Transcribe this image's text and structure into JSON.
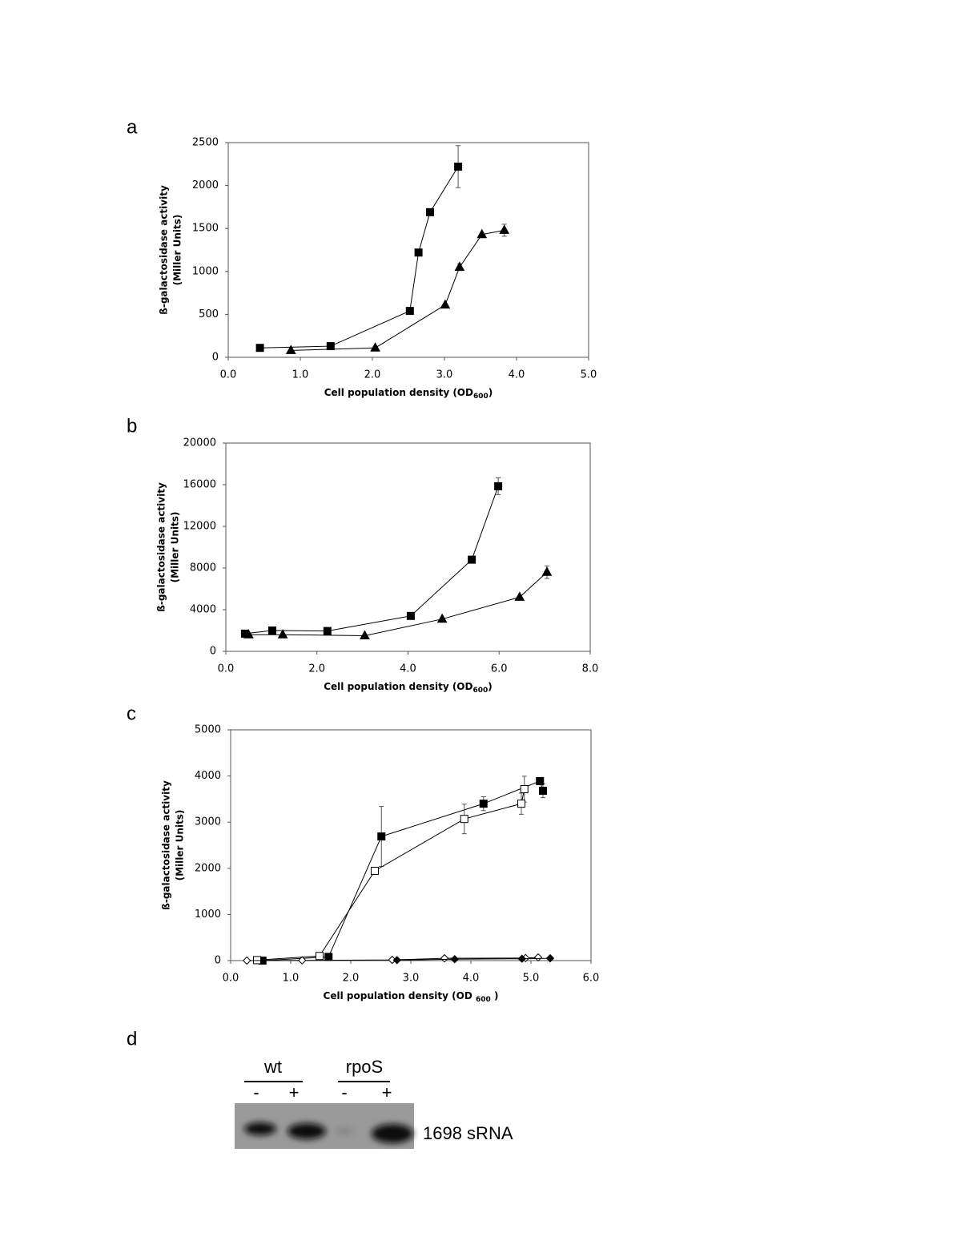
{
  "chart_data": [
    {
      "type": "line",
      "panel": "a",
      "ylabel": [
        "ß-galactosidase activity",
        "(Miller Units)"
      ],
      "xlabel": "Cell population density (OD",
      "xlabel_sub": "600",
      "xlabel_end": ")",
      "xlim": [
        0,
        5
      ],
      "ylim": [
        0,
        2500
      ],
      "xticks": [
        {
          "value": 0,
          "label": "0.0"
        },
        {
          "value": 1,
          "label": "1.0"
        },
        {
          "value": 2,
          "label": "2.0"
        },
        {
          "value": 3,
          "label": "3.0"
        },
        {
          "value": 4,
          "label": "4.0"
        },
        {
          "value": 5,
          "label": "5.0"
        }
      ],
      "yticks": [
        0,
        500,
        1000,
        1500,
        2000,
        2500
      ],
      "series": [
        {
          "marker": "square",
          "filled": true,
          "color": "#000000",
          "x": [
            0.44,
            1.42,
            2.52,
            2.64,
            2.8,
            3.19
          ],
          "values": [
            110,
            130,
            540,
            1220,
            1690,
            2220
          ],
          "errors": [
            null,
            null,
            30,
            null,
            30,
            245
          ]
        },
        {
          "marker": "triangle",
          "filled": true,
          "color": "#000000",
          "x": [
            0.87,
            2.04,
            3.01,
            3.21,
            3.52,
            3.83
          ],
          "values": [
            80,
            110,
            610,
            1050,
            1430,
            1480
          ],
          "errors": [
            null,
            null,
            null,
            40,
            null,
            70
          ]
        }
      ]
    },
    {
      "type": "line",
      "panel": "b",
      "ylabel": [
        "ß-galactosidase activity",
        "(Miller Units)"
      ],
      "xlabel": "Cell population density (OD",
      "xlabel_sub": "600",
      "xlabel_end": ")",
      "xlim": [
        0,
        8
      ],
      "ylim": [
        0,
        20000
      ],
      "xticks": [
        {
          "value": 0,
          "label": "0.0"
        },
        {
          "value": 2,
          "label": "2.0"
        },
        {
          "value": 4,
          "label": "4.0"
        },
        {
          "value": 6,
          "label": "6.0"
        },
        {
          "value": 8,
          "label": "8.0"
        }
      ],
      "yticks": [
        0,
        4000,
        8000,
        12000,
        16000,
        20000
      ],
      "series": [
        {
          "marker": "square",
          "filled": true,
          "color": "#000000",
          "x": [
            0.42,
            1.02,
            2.23,
            4.06,
            5.4,
            5.98
          ],
          "values": [
            1700,
            2000,
            1950,
            3400,
            8800,
            15850
          ],
          "errors": [
            null,
            null,
            null,
            null,
            null,
            800
          ]
        },
        {
          "marker": "triangle",
          "filled": true,
          "color": "#000000",
          "x": [
            0.5,
            1.25,
            3.05,
            4.75,
            6.45,
            7.05
          ],
          "values": [
            1600,
            1600,
            1500,
            3100,
            5200,
            7600
          ],
          "errors": [
            null,
            null,
            null,
            null,
            null,
            600
          ]
        }
      ]
    },
    {
      "type": "line",
      "panel": "c",
      "ylabel": [
        "ß-galactosidase activity",
        "(Miller Units)"
      ],
      "xlabel": "Cell population density (OD ",
      "xlabel_sub": "600",
      "xlabel_end": " )",
      "xlim": [
        0,
        6
      ],
      "ylim": [
        0,
        5000
      ],
      "xticks": [
        {
          "value": 0,
          "label": "0.0"
        },
        {
          "value": 1,
          "label": "1.0"
        },
        {
          "value": 2,
          "label": "2.0"
        },
        {
          "value": 3,
          "label": "3.0"
        },
        {
          "value": 4,
          "label": "4.0"
        },
        {
          "value": 5,
          "label": "5.0"
        },
        {
          "value": 6,
          "label": "6.0"
        }
      ],
      "yticks": [
        0,
        1000,
        2000,
        3000,
        4000,
        5000
      ],
      "series": [
        {
          "marker": "square",
          "filled": true,
          "color": "#000000",
          "x": [
            0.53,
            1.63,
            2.51,
            4.21,
            5.15,
            5.2
          ],
          "values": [
            0,
            80,
            2690,
            3400,
            3890,
            3680
          ],
          "errors": [
            null,
            null,
            650,
            150,
            null,
            150
          ]
        },
        {
          "marker": "square",
          "filled": false,
          "color": "#000000",
          "x": [
            0.44,
            1.48,
            2.4,
            3.89,
            4.84,
            4.89
          ],
          "values": [
            10,
            100,
            1945,
            3070,
            3400,
            3715
          ],
          "errors": [
            null,
            null,
            null,
            320,
            230,
            280
          ]
        },
        {
          "marker": "diamond",
          "filled": false,
          "color": "#000000",
          "x": [
            0.27,
            1.19,
            2.69,
            3.56,
            4.91,
            5.12
          ],
          "values": [
            0,
            5,
            15,
            50,
            55,
            70
          ],
          "errors": [
            null,
            null,
            null,
            null,
            null,
            null
          ]
        },
        {
          "marker": "diamond",
          "filled": true,
          "color": "#000000",
          "x": [
            2.77,
            3.73,
            4.85,
            5.32
          ],
          "values": [
            10,
            30,
            40,
            50
          ],
          "errors": [
            null,
            null,
            null,
            null
          ]
        }
      ]
    }
  ],
  "blot": {
    "panel": "d",
    "groups": [
      {
        "name": "wt",
        "lanes": [
          "-",
          "+"
        ]
      },
      {
        "name": "rpoS",
        "lanes": [
          "-",
          "+"
        ]
      }
    ],
    "band_label": "1698 sRNA"
  }
}
